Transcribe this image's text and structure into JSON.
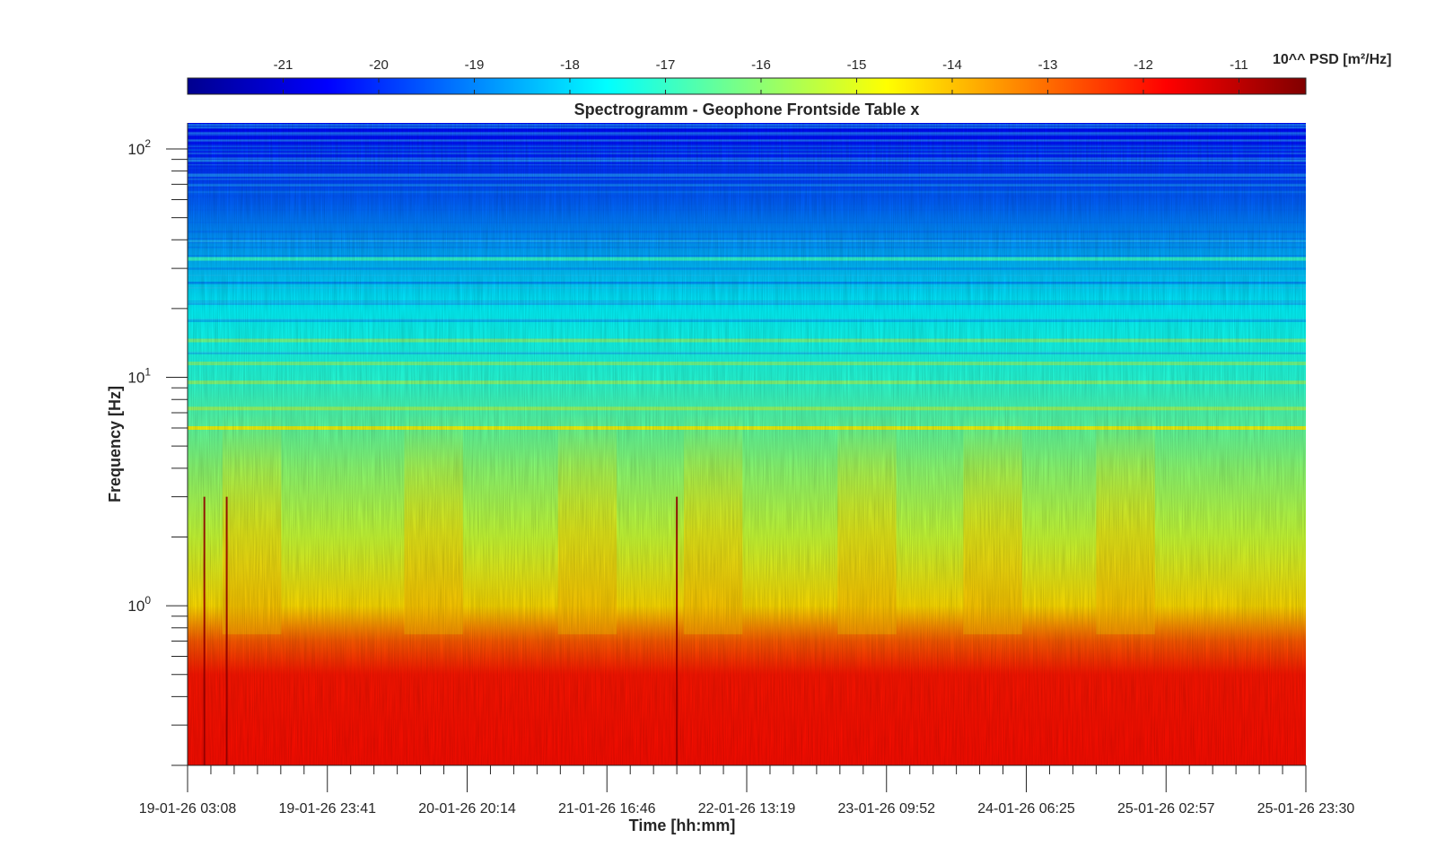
{
  "chart_data": {
    "type": "heatmap",
    "title": "Spectrogramm - Geophone Frontside Table x",
    "xlabel": "Time [hh:mm]",
    "ylabel": "Frequency [Hz]",
    "x_tick_labels": [
      "19-01-26 03:08",
      "19-01-26 23:41",
      "20-01-26 20:14",
      "21-01-26 16:46",
      "22-01-26 13:19",
      "23-01-26 09:52",
      "24-01-26 06:25",
      "25-01-26 02:57",
      "25-01-26 23:30"
    ],
    "y_scale": "log",
    "ylim": [
      0.2,
      130
    ],
    "y_tick_labels": [
      {
        "value": 1,
        "base": "10",
        "exp": "0"
      },
      {
        "value": 10,
        "base": "10",
        "exp": "1"
      },
      {
        "value": 100,
        "base": "10",
        "exp": "2"
      }
    ],
    "colorbar": {
      "label": "10^^ PSD [m²/Hz]",
      "colormap": "jet",
      "range": [
        -22,
        -10.3
      ],
      "ticks": [
        -21,
        -20,
        -19,
        -18,
        -17,
        -16,
        -15,
        -14,
        -13,
        -12,
        -11
      ]
    },
    "z_band_profile": [
      {
        "freq": 0.2,
        "log10_psd": -11.9
      },
      {
        "freq": 0.5,
        "log10_psd": -12.0
      },
      {
        "freq": 0.7,
        "log10_psd": -12.8
      },
      {
        "freq": 1.0,
        "log10_psd": -14.3
      },
      {
        "freq": 2.0,
        "log10_psd": -15.3
      },
      {
        "freq": 4.0,
        "log10_psd": -16.0
      },
      {
        "freq": 10.0,
        "log10_psd": -17.2
      },
      {
        "freq": 20.0,
        "log10_psd": -17.7
      },
      {
        "freq": 40.0,
        "log10_psd": -18.8
      },
      {
        "freq": 100.0,
        "log10_psd": -20.3
      },
      {
        "freq": 130.0,
        "log10_psd": -20.5
      }
    ],
    "persistent_lines_hz": [
      {
        "freq": 6.0,
        "log10_psd": -14.6
      },
      {
        "freq": 7.3,
        "log10_psd": -15.8
      },
      {
        "freq": 9.5,
        "log10_psd": -16.0
      },
      {
        "freq": 11.5,
        "log10_psd": -16.2
      },
      {
        "freq": 14.5,
        "log10_psd": -16.2
      },
      {
        "freq": 33.0,
        "log10_psd": -17.0
      }
    ],
    "activity_periods_start_day": [
      0.25,
      1.55,
      2.65,
      3.55,
      4.65,
      5.55,
      6.5
    ],
    "spikes_day": [
      0.12,
      0.28,
      3.5
    ]
  }
}
